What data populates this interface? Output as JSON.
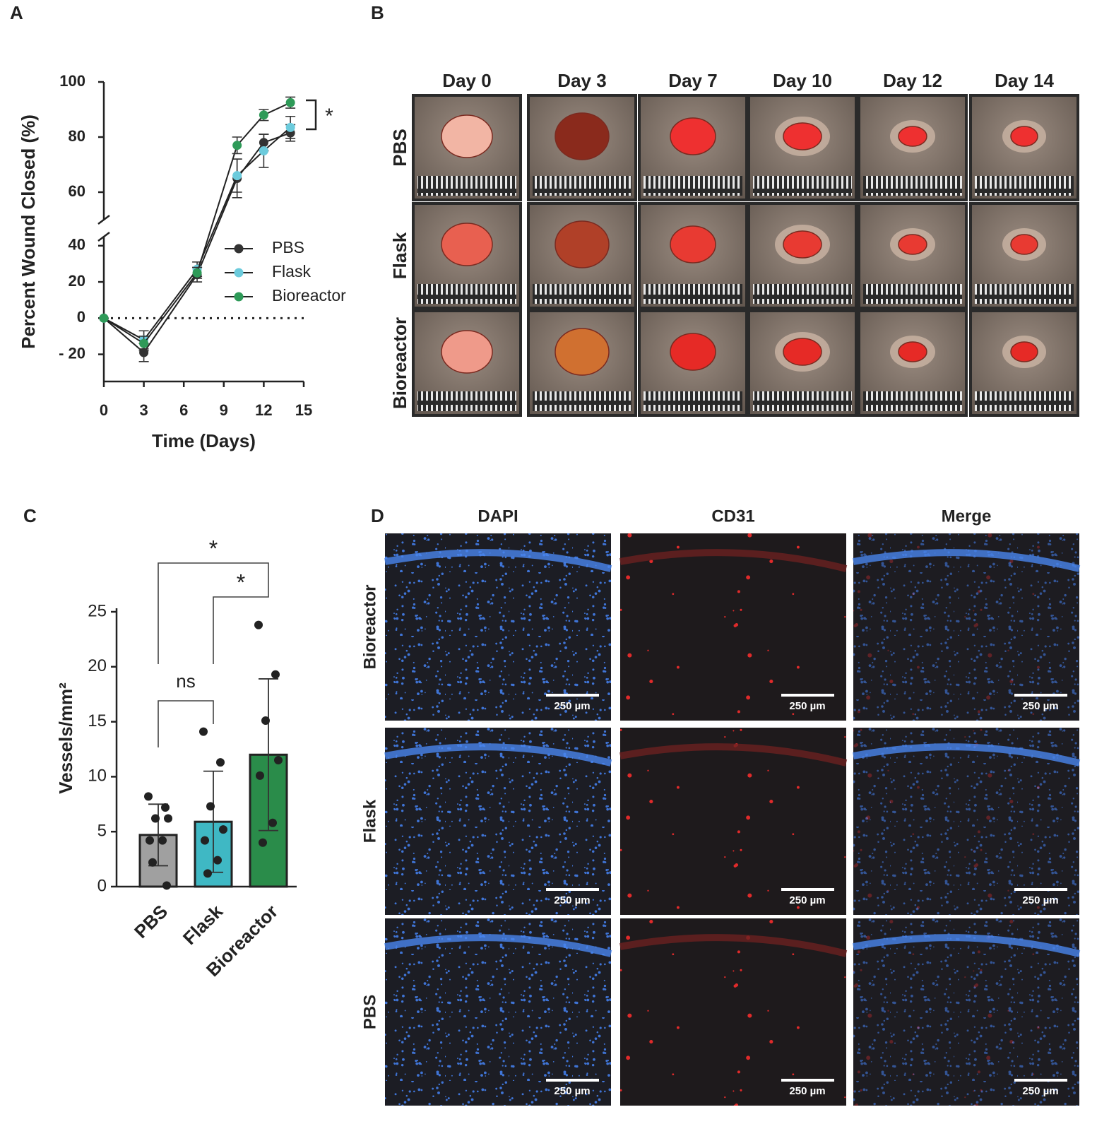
{
  "chart_data": [
    {
      "type": "line",
      "panel_label": "A",
      "ylabel": "Percent Wound Closed (%)",
      "xlabel": "Time (Days)",
      "x": [
        0,
        3,
        7,
        10,
        12,
        14
      ],
      "series": [
        {
          "name": "PBS",
          "color": "#333333",
          "values": [
            0,
            -19,
            24,
            65,
            78,
            81.5
          ],
          "errors": [
            0,
            5,
            4,
            7,
            3,
            3
          ]
        },
        {
          "name": "Flask",
          "color": "#6ccbdc",
          "values": [
            0,
            -12,
            27,
            66,
            75,
            83.5
          ],
          "errors": [
            0,
            5,
            4,
            6,
            6,
            4
          ]
        },
        {
          "name": "Bioreactor",
          "color": "#2e9a58",
          "values": [
            0,
            -14,
            25,
            77,
            88,
            92.5
          ],
          "errors": [
            0,
            4,
            3,
            3,
            2,
            2
          ]
        }
      ],
      "xlim": [
        0,
        15
      ],
      "xticks": [
        0,
        3,
        6,
        9,
        12,
        15
      ],
      "ylim": [
        -35,
        100
      ],
      "ybreak": [
        45,
        50
      ],
      "yticks": [
        {
          "value": -20,
          "label": "- 20"
        },
        0,
        20,
        40,
        60,
        80,
        100
      ],
      "reference_line": 0,
      "legend": "right",
      "annotation": "*"
    },
    {
      "type": "bar",
      "panel_label": "C",
      "ylabel": "Vessels/mm²",
      "categories": [
        "PBS",
        "Flask",
        "Bioreactor"
      ],
      "values": [
        4.7,
        5.9,
        12.0
      ],
      "errors": [
        2.8,
        4.6,
        6.9
      ],
      "colors": [
        "#a0a0a0",
        "#3fb8c4",
        "#2a8c4a"
      ],
      "points": [
        [
          8.2,
          7.2,
          6.2,
          6.2,
          4.2,
          4.2,
          2.2,
          0.1
        ],
        [
          14.1,
          11.3,
          7.3,
          5.2,
          4.2,
          2.4,
          1.2
        ],
        [
          23.8,
          19.3,
          15.1,
          11.5,
          10.1,
          5.8,
          4.0
        ]
      ],
      "ylim": [
        0,
        25
      ],
      "yticks": [
        0,
        5,
        10,
        15,
        20,
        25
      ],
      "annotations": [
        "*",
        "*",
        "ns"
      ]
    }
  ],
  "panel_b": {
    "label": "B",
    "columns": [
      "Day 0",
      "Day 3",
      "Day 7",
      "Day 10",
      "Day 12",
      "Day 14"
    ],
    "rows": [
      "PBS",
      "Flask",
      "Bioreactor"
    ]
  },
  "panel_d": {
    "label": "D",
    "columns": [
      "DAPI",
      "CD31",
      "Merge"
    ],
    "rows": [
      "Bioreactor",
      "Flask",
      "PBS"
    ],
    "scale_bar": "250 µm"
  }
}
